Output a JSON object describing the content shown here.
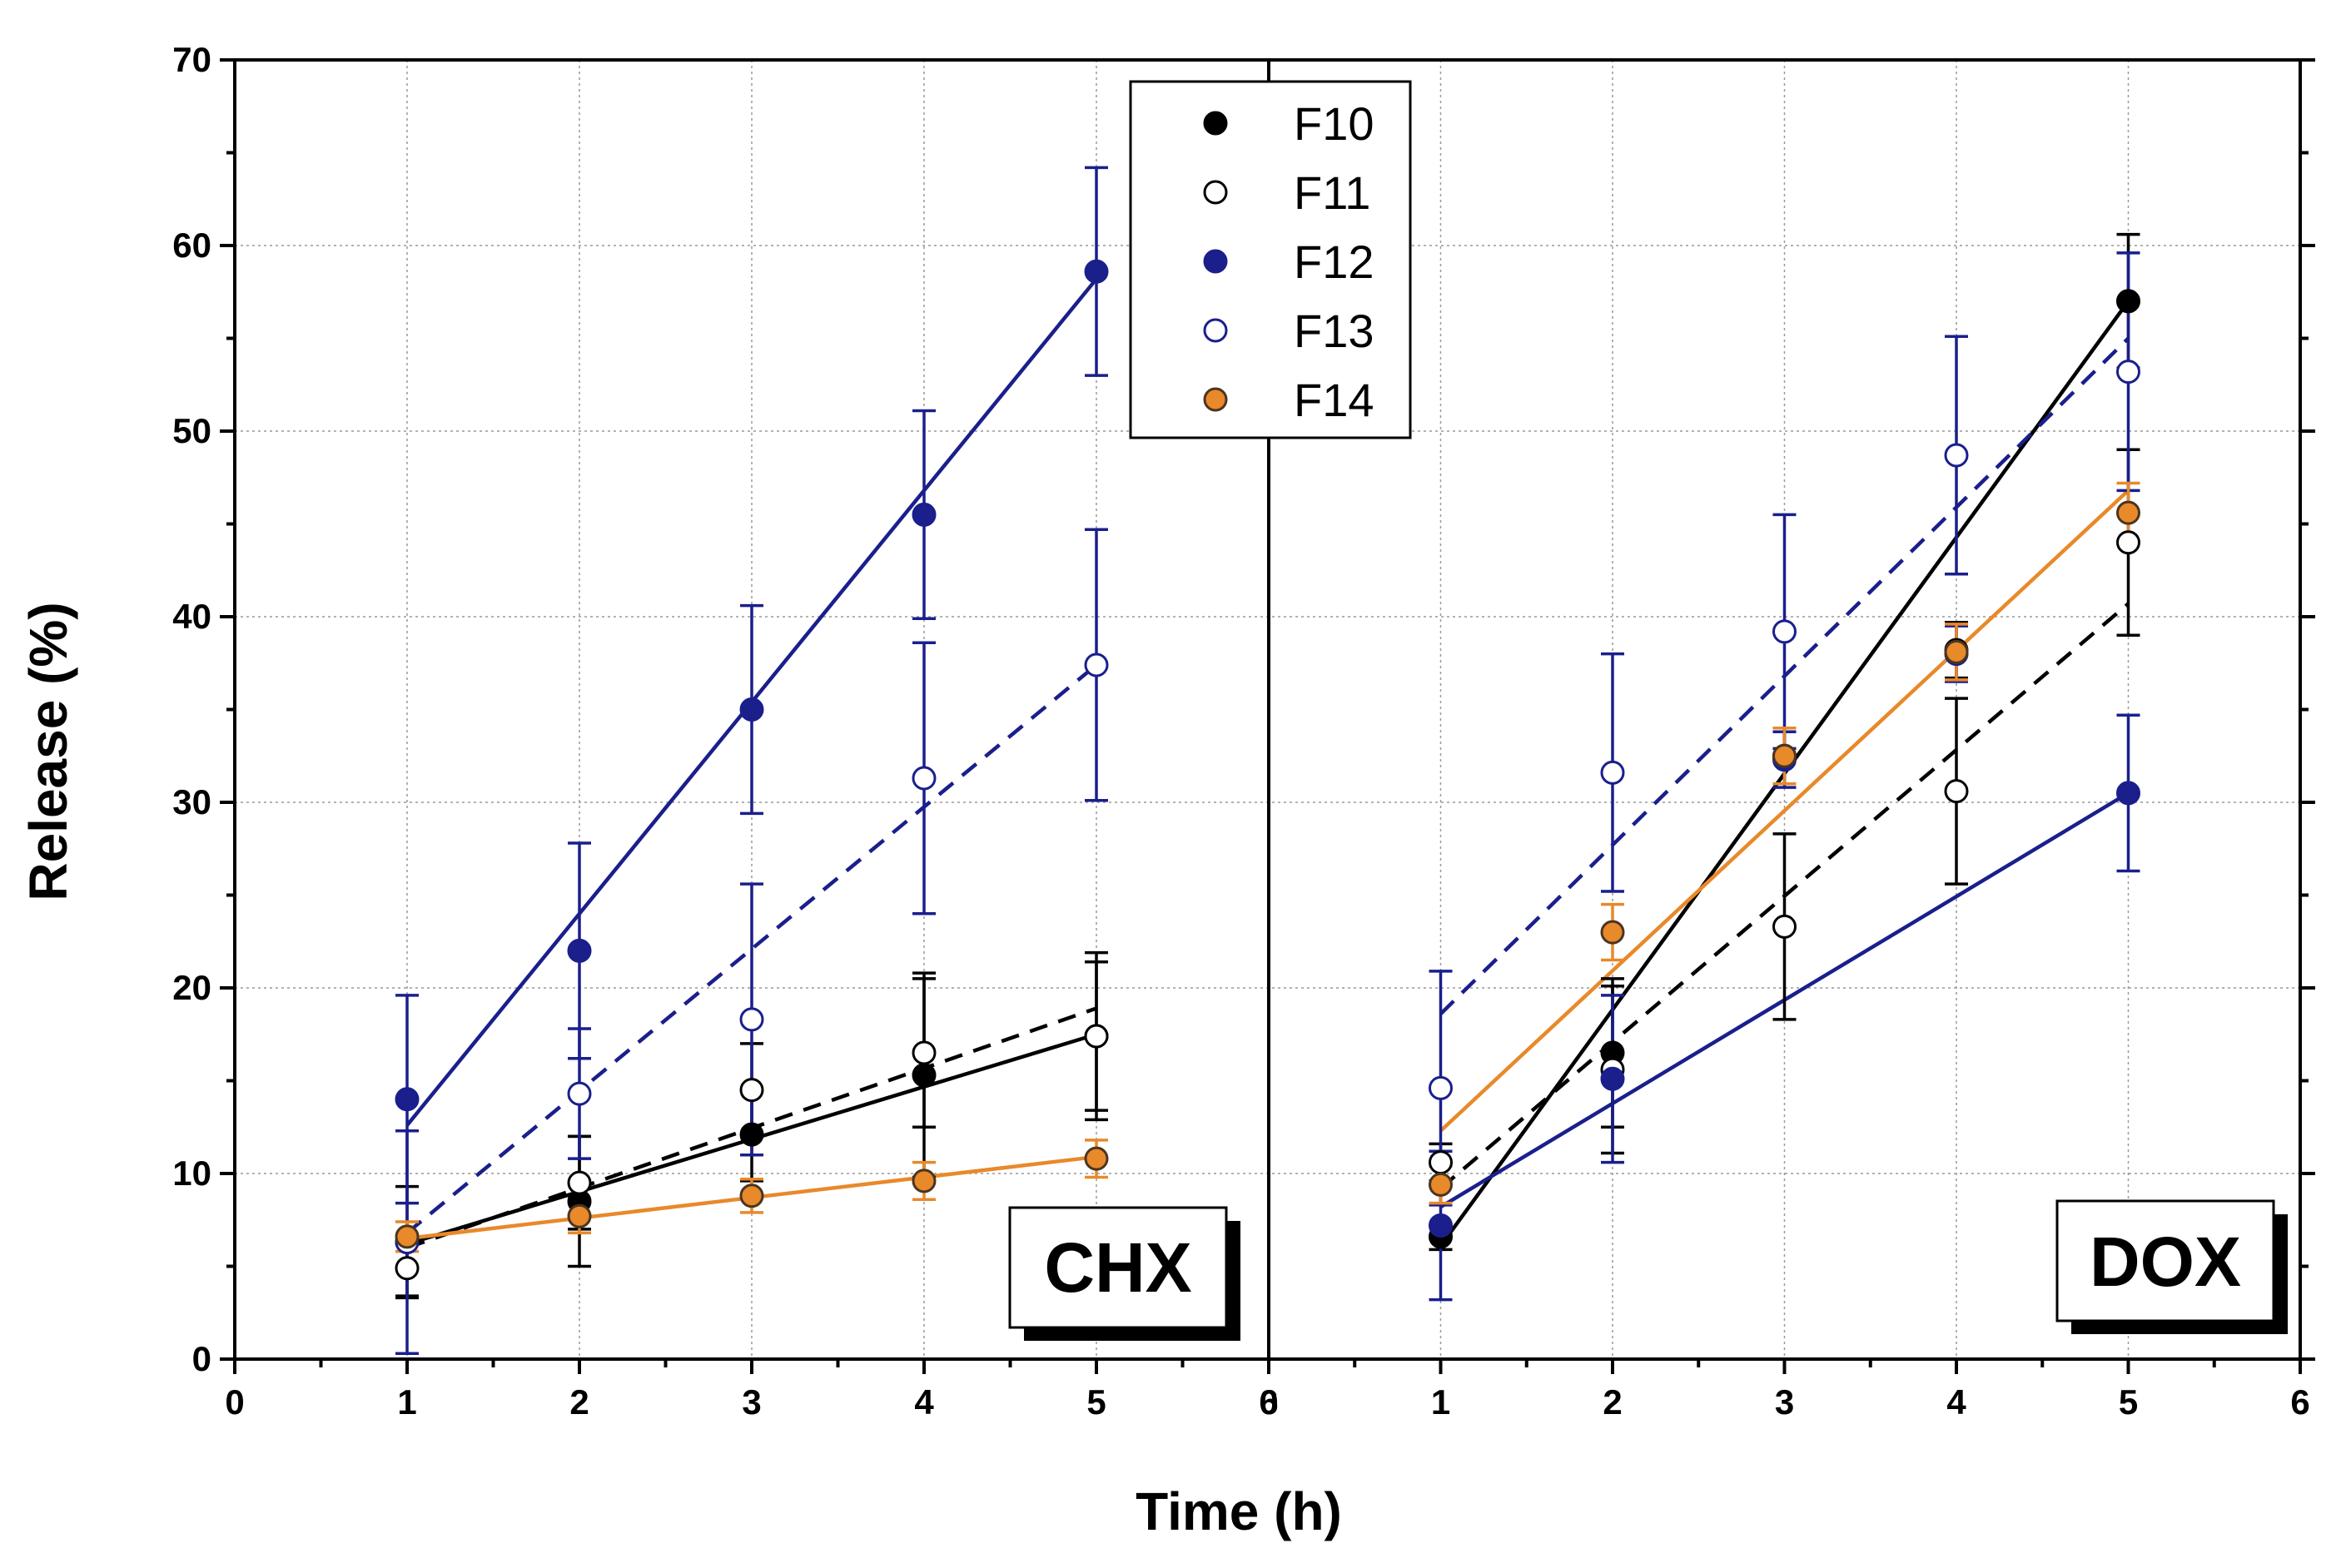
{
  "chart_data": {
    "type": "scatter",
    "ylabel": "Release (%)",
    "xlabel": "Time (h)",
    "ylim": [
      0,
      70
    ],
    "yticks": [
      "0",
      "10",
      "20",
      "30",
      "40",
      "50",
      "60",
      "70"
    ],
    "xlim": [
      0,
      6
    ],
    "xticks": [
      "0",
      "1",
      "2",
      "3",
      "4",
      "5",
      "6"
    ],
    "grid": true,
    "legend_position": "top-center",
    "legend": [
      {
        "name": "F10",
        "color": "#000000",
        "filled": true
      },
      {
        "name": "F11",
        "color": "#000000",
        "filled": false
      },
      {
        "name": "F12",
        "color": "#1a1f8c",
        "filled": true
      },
      {
        "name": "F13",
        "color": "#1a1f8c",
        "filled": false
      },
      {
        "name": "F14",
        "color": "#e8892a",
        "filled": true
      }
    ],
    "panels": [
      {
        "label": "CHX",
        "series": [
          {
            "name": "F10",
            "x": [
              1,
              2,
              3,
              4,
              5
            ],
            "y": [
              6.3,
              8.5,
              12.1,
              15.3,
              17.4
            ],
            "err": [
              3.0,
              3.5,
              2.5,
              5.5,
              4.5
            ],
            "fit": [
              6.2,
              17.5
            ],
            "fit_style": "solid"
          },
          {
            "name": "F11",
            "x": [
              1,
              2,
              3,
              4,
              5
            ],
            "y": [
              4.9,
              9.5,
              14.5,
              16.5,
              17.4
            ],
            "err": [
              1.5,
              2.5,
              2.5,
              4.0,
              4.0
            ],
            "fit": [
              6.0,
              18.9
            ],
            "fit_style": "dashed"
          },
          {
            "name": "F12",
            "x": [
              1,
              2,
              3,
              4,
              5
            ],
            "y": [
              14.0,
              22.0,
              35.0,
              45.5,
              58.6
            ],
            "err": [
              5.6,
              5.8,
              5.6,
              5.6,
              5.6
            ],
            "fit": [
              12.6,
              58.2
            ],
            "fit_style": "solid"
          },
          {
            "name": "F13",
            "x": [
              1,
              2,
              3,
              4,
              5
            ],
            "y": [
              6.3,
              14.3,
              18.3,
              31.3,
              37.4
            ],
            "err": [
              6.0,
              3.5,
              7.3,
              7.3,
              7.3
            ],
            "fit": [
              6.8,
              37.4
            ],
            "fit_style": "dashed"
          },
          {
            "name": "F14",
            "x": [
              1,
              2,
              3,
              4,
              5
            ],
            "y": [
              6.6,
              7.7,
              8.8,
              9.6,
              10.8
            ],
            "err": [
              0.8,
              0.9,
              0.9,
              1.0,
              1.0
            ],
            "fit": [
              6.5,
              10.9
            ],
            "fit_style": "solid"
          }
        ]
      },
      {
        "label": "DOX",
        "series": [
          {
            "name": "F10",
            "x": [
              1,
              2,
              3,
              4,
              5
            ],
            "y": [
              6.6,
              16.5,
              32.5,
              38.2,
              57.0
            ],
            "err": [
              0.7,
              4.0,
              1.5,
              1.5,
              3.6
            ],
            "fit": [
              6.1,
              57.0
            ],
            "fit_style": "solid"
          },
          {
            "name": "F11",
            "x": [
              1,
              2,
              3,
              4,
              5
            ],
            "y": [
              10.6,
              15.6,
              23.3,
              30.6,
              44.0
            ],
            "err": [
              1.0,
              4.5,
              5.0,
              5.0,
              5.0
            ],
            "fit": [
              9.2,
              40.7
            ],
            "fit_style": "dashed"
          },
          {
            "name": "F12",
            "x": [
              1,
              2,
              3,
              4,
              5
            ],
            "y": [
              7.2,
              15.1,
              32.3,
              38.0,
              30.5
            ],
            "err": [
              4.0,
              4.5,
              1.5,
              1.5,
              4.2
            ],
            "fit": [
              8.2,
              30.5
            ],
            "fit_style": "solid"
          },
          {
            "name": "F13",
            "x": [
              1,
              2,
              3,
              4,
              5
            ],
            "y": [
              14.6,
              31.6,
              39.2,
              48.7,
              53.2
            ],
            "err": [
              6.3,
              6.4,
              6.3,
              6.4,
              6.4
            ],
            "fit": [
              18.6,
              55.0
            ],
            "fit_style": "dashed"
          },
          {
            "name": "F14",
            "x": [
              1,
              2,
              3,
              4,
              5
            ],
            "y": [
              9.4,
              23.0,
              32.5,
              38.1,
              45.6
            ],
            "err": [
              1.0,
              1.5,
              1.5,
              1.5,
              1.6
            ],
            "fit": [
              12.3,
              46.8
            ],
            "fit_style": "solid"
          }
        ]
      }
    ]
  }
}
